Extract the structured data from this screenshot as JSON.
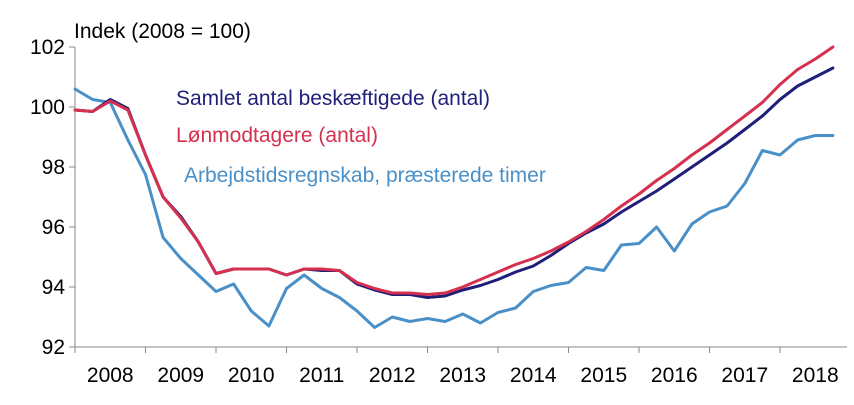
{
  "chart_data": {
    "type": "line",
    "unit_label": "Indek  (2008 = 100)",
    "ylim": [
      92,
      102
    ],
    "y_ticks": [
      92,
      94,
      96,
      98,
      100,
      102
    ],
    "x_ticks": [
      "2008",
      "2009",
      "2010",
      "2011",
      "2012",
      "2013",
      "2014",
      "2015",
      "2016",
      "2017",
      "2018"
    ],
    "xlim": [
      2008.0,
      2018.95
    ],
    "grid": false,
    "legend_placement": "inside-top-left",
    "series": [
      {
        "name": "Samlet antal beskæftigede (antal)",
        "color": "#1f1f7a",
        "x": [
          2008.0,
          2008.25,
          2008.5,
          2008.75,
          2009.0,
          2009.25,
          2009.5,
          2009.75,
          2010.0,
          2010.25,
          2010.5,
          2010.75,
          2011.0,
          2011.25,
          2011.5,
          2011.75,
          2012.0,
          2012.25,
          2012.5,
          2012.75,
          2013.0,
          2013.25,
          2013.5,
          2013.75,
          2014.0,
          2014.25,
          2014.5,
          2014.75,
          2015.0,
          2015.25,
          2015.5,
          2015.75,
          2016.0,
          2016.25,
          2016.5,
          2016.75,
          2017.0,
          2017.25,
          2017.5,
          2017.75,
          2018.0,
          2018.25,
          2018.5,
          2018.75
        ],
        "values": [
          99.9,
          99.85,
          100.25,
          99.95,
          98.4,
          97.0,
          96.35,
          95.5,
          94.45,
          94.6,
          94.6,
          94.6,
          94.4,
          94.6,
          94.55,
          94.55,
          94.1,
          93.9,
          93.75,
          93.75,
          93.65,
          93.7,
          93.9,
          94.05,
          94.25,
          94.5,
          94.7,
          95.05,
          95.45,
          95.8,
          96.1,
          96.5,
          96.85,
          97.2,
          97.6,
          98.0,
          98.4,
          98.8,
          99.25,
          99.7,
          100.25,
          100.7,
          101.0,
          101.3
        ]
      },
      {
        "name": "Lønmodtagere (antal)",
        "color": "#d6304f",
        "x": [
          2008.0,
          2008.25,
          2008.5,
          2008.75,
          2009.0,
          2009.25,
          2009.5,
          2009.75,
          2010.0,
          2010.25,
          2010.5,
          2010.75,
          2011.0,
          2011.25,
          2011.5,
          2011.75,
          2012.0,
          2012.25,
          2012.5,
          2012.75,
          2013.0,
          2013.25,
          2013.5,
          2013.75,
          2014.0,
          2014.25,
          2014.5,
          2014.75,
          2015.0,
          2015.25,
          2015.5,
          2015.75,
          2016.0,
          2016.25,
          2016.5,
          2016.75,
          2017.0,
          2017.25,
          2017.5,
          2017.75,
          2018.0,
          2018.25,
          2018.5,
          2018.75
        ],
        "values": [
          99.9,
          99.85,
          100.2,
          99.9,
          98.4,
          97.0,
          96.3,
          95.5,
          94.45,
          94.6,
          94.6,
          94.6,
          94.4,
          94.6,
          94.6,
          94.55,
          94.15,
          93.95,
          93.8,
          93.8,
          93.75,
          93.8,
          94.0,
          94.25,
          94.5,
          94.75,
          94.95,
          95.2,
          95.5,
          95.85,
          96.25,
          96.7,
          97.1,
          97.55,
          97.95,
          98.4,
          98.8,
          99.25,
          99.7,
          100.15,
          100.75,
          101.25,
          101.6,
          102.0
        ]
      },
      {
        "name": "Arbejdstidsregnskab, præsterede timer",
        "color": "#4a90c8",
        "x": [
          2008.0,
          2008.25,
          2008.5,
          2008.75,
          2009.0,
          2009.25,
          2009.5,
          2009.75,
          2010.0,
          2010.25,
          2010.5,
          2010.75,
          2011.0,
          2011.25,
          2011.5,
          2011.75,
          2012.0,
          2012.25,
          2012.5,
          2012.75,
          2013.0,
          2013.25,
          2013.5,
          2013.75,
          2014.0,
          2014.25,
          2014.5,
          2014.75,
          2015.0,
          2015.25,
          2015.5,
          2015.75,
          2016.0,
          2016.25,
          2016.5,
          2016.75,
          2017.0,
          2017.25,
          2017.5,
          2017.75,
          2018.0,
          2018.25,
          2018.5,
          2018.75
        ],
        "values": [
          100.6,
          100.25,
          100.15,
          98.9,
          97.75,
          95.65,
          94.95,
          94.4,
          93.85,
          94.1,
          93.2,
          92.7,
          93.95,
          94.4,
          93.95,
          93.65,
          93.2,
          92.65,
          93.0,
          92.85,
          92.95,
          92.85,
          93.1,
          92.8,
          93.15,
          93.3,
          93.85,
          94.05,
          94.15,
          94.65,
          94.55,
          95.4,
          95.45,
          96.0,
          95.2,
          96.1,
          96.5,
          96.7,
          97.45,
          98.55,
          98.4,
          98.9,
          99.05,
          99.05
        ]
      }
    ]
  }
}
